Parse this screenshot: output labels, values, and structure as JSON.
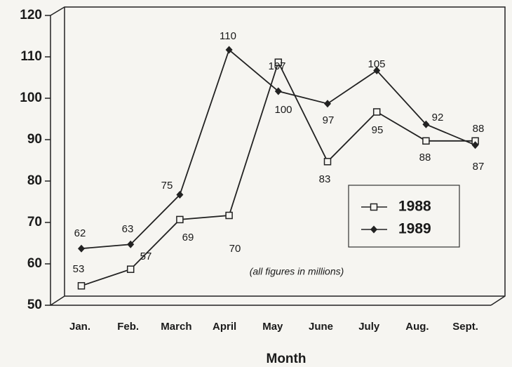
{
  "chart_data": {
    "type": "line",
    "x_label": "Month",
    "annotation": "(all figures in millions)",
    "categories": [
      "Jan.",
      "Feb.",
      "March",
      "April",
      "May",
      "June",
      "July",
      "Aug.",
      "Sept."
    ],
    "series": [
      {
        "name": "1988",
        "color": "#222222",
        "marker": "square",
        "values": [
          53,
          57,
          69,
          70,
          107,
          83,
          95,
          88,
          88
        ]
      },
      {
        "name": "1989",
        "color": "#222222",
        "marker": "diamond",
        "values": [
          62,
          63,
          75,
          110,
          100,
          97,
          105,
          92,
          87
        ]
      }
    ],
    "ylim": [
      50,
      120
    ],
    "yticks": [
      50,
      60,
      70,
      80,
      90,
      100,
      110,
      120
    ],
    "legend": "lower right"
  }
}
